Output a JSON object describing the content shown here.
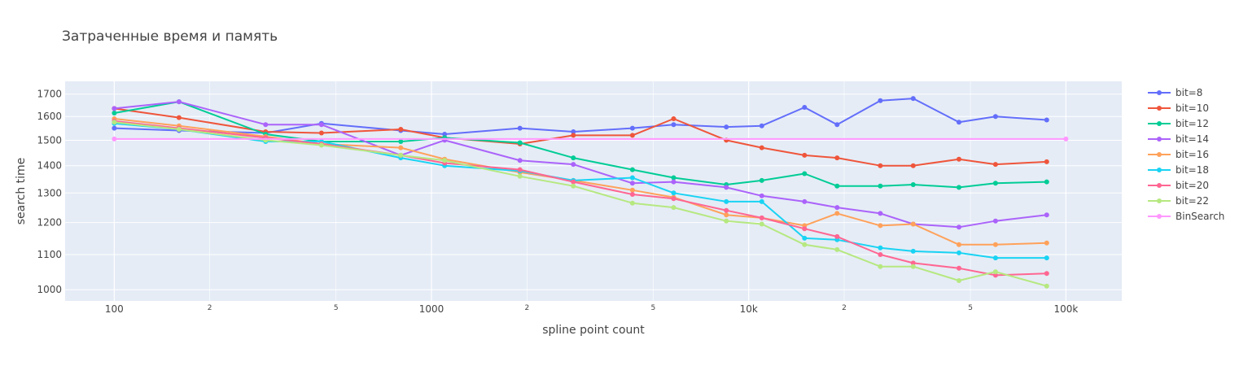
{
  "chart_data": {
    "type": "line",
    "title": "Затраченные время и память",
    "xlabel": "spline point count",
    "ylabel": "search time",
    "x_scale": "log",
    "y_scale": "log",
    "xlim": [
      70,
      150000
    ],
    "ylim": [
      970,
      1760
    ],
    "x_ticks": [
      {
        "value": 100,
        "label": "100",
        "minor": false
      },
      {
        "value": 200,
        "label": "2",
        "minor": true
      },
      {
        "value": 500,
        "label": "5",
        "minor": true
      },
      {
        "value": 1000,
        "label": "1000",
        "minor": false
      },
      {
        "value": 2000,
        "label": "2",
        "minor": true
      },
      {
        "value": 5000,
        "label": "5",
        "minor": true
      },
      {
        "value": 10000,
        "label": "10k",
        "minor": false
      },
      {
        "value": 20000,
        "label": "2",
        "minor": true
      },
      {
        "value": 50000,
        "label": "5",
        "minor": true
      },
      {
        "value": 100000,
        "label": "100k",
        "minor": false
      }
    ],
    "y_ticks": [
      1000,
      1100,
      1200,
      1300,
      1400,
      1500,
      1600,
      1700
    ],
    "grid": true,
    "legend_position": "right",
    "x": [
      100,
      160,
      300,
      450,
      800,
      1100,
      1900,
      2800,
      4300,
      5800,
      8500,
      11000,
      15000,
      19000,
      26000,
      33000,
      46000,
      60000,
      87000
    ],
    "series": [
      {
        "name": "bit=8",
        "color": "#636efa",
        "values": [
          1550,
          1540,
          1530,
          1570,
          1540,
          1525,
          1550,
          1535,
          1550,
          1565,
          1555,
          1560,
          1640,
          1565,
          1670,
          1680,
          1575,
          1600,
          1585
        ]
      },
      {
        "name": "bit=10",
        "color": "#ef553b",
        "values": [
          1635,
          1595,
          1535,
          1530,
          1545,
          1510,
          1485,
          1520,
          1520,
          1590,
          1500,
          1470,
          1440,
          1430,
          1400,
          1400,
          1425,
          1405,
          1415
        ]
      },
      {
        "name": "bit=12",
        "color": "#00cc96",
        "values": [
          1615,
          1665,
          1525,
          1495,
          1495,
          1510,
          1490,
          1430,
          1385,
          1355,
          1330,
          1345,
          1370,
          1325,
          1325,
          1330,
          1320,
          1335,
          1340
        ]
      },
      {
        "name": "bit=14",
        "color": "#ab63fa",
        "values": [
          1635,
          1665,
          1565,
          1565,
          1440,
          1500,
          1420,
          1405,
          1335,
          1340,
          1320,
          1290,
          1270,
          1250,
          1230,
          1195,
          1185,
          1205,
          1225
        ]
      },
      {
        "name": "bit=16",
        "color": "#ffa15a",
        "values": [
          1590,
          1560,
          1515,
          1485,
          1470,
          1425,
          1375,
          1345,
          1310,
          1285,
          1225,
          1215,
          1190,
          1230,
          1190,
          1195,
          1130,
          1130,
          1135
        ]
      },
      {
        "name": "bit=18",
        "color": "#19d3f3",
        "values": [
          1570,
          1545,
          1495,
          1495,
          1430,
          1400,
          1380,
          1345,
          1355,
          1300,
          1270,
          1270,
          1150,
          1145,
          1120,
          1110,
          1105,
          1090,
          1090
        ]
      },
      {
        "name": "bit=20",
        "color": "#ff6692",
        "values": [
          1580,
          1550,
          1510,
          1485,
          1440,
          1410,
          1385,
          1340,
          1295,
          1280,
          1240,
          1215,
          1180,
          1155,
          1100,
          1075,
          1060,
          1040,
          1045
        ]
      },
      {
        "name": "bit=22",
        "color": "#b6e880",
        "values": [
          1575,
          1545,
          1500,
          1480,
          1440,
          1420,
          1360,
          1325,
          1265,
          1250,
          1205,
          1195,
          1130,
          1115,
          1065,
          1065,
          1025,
          1050,
          1010
        ]
      },
      {
        "name": "BinSearch",
        "color": "#ff97ff",
        "x": [
          100,
          100000
        ],
        "values": [
          1505,
          1505
        ]
      }
    ]
  }
}
